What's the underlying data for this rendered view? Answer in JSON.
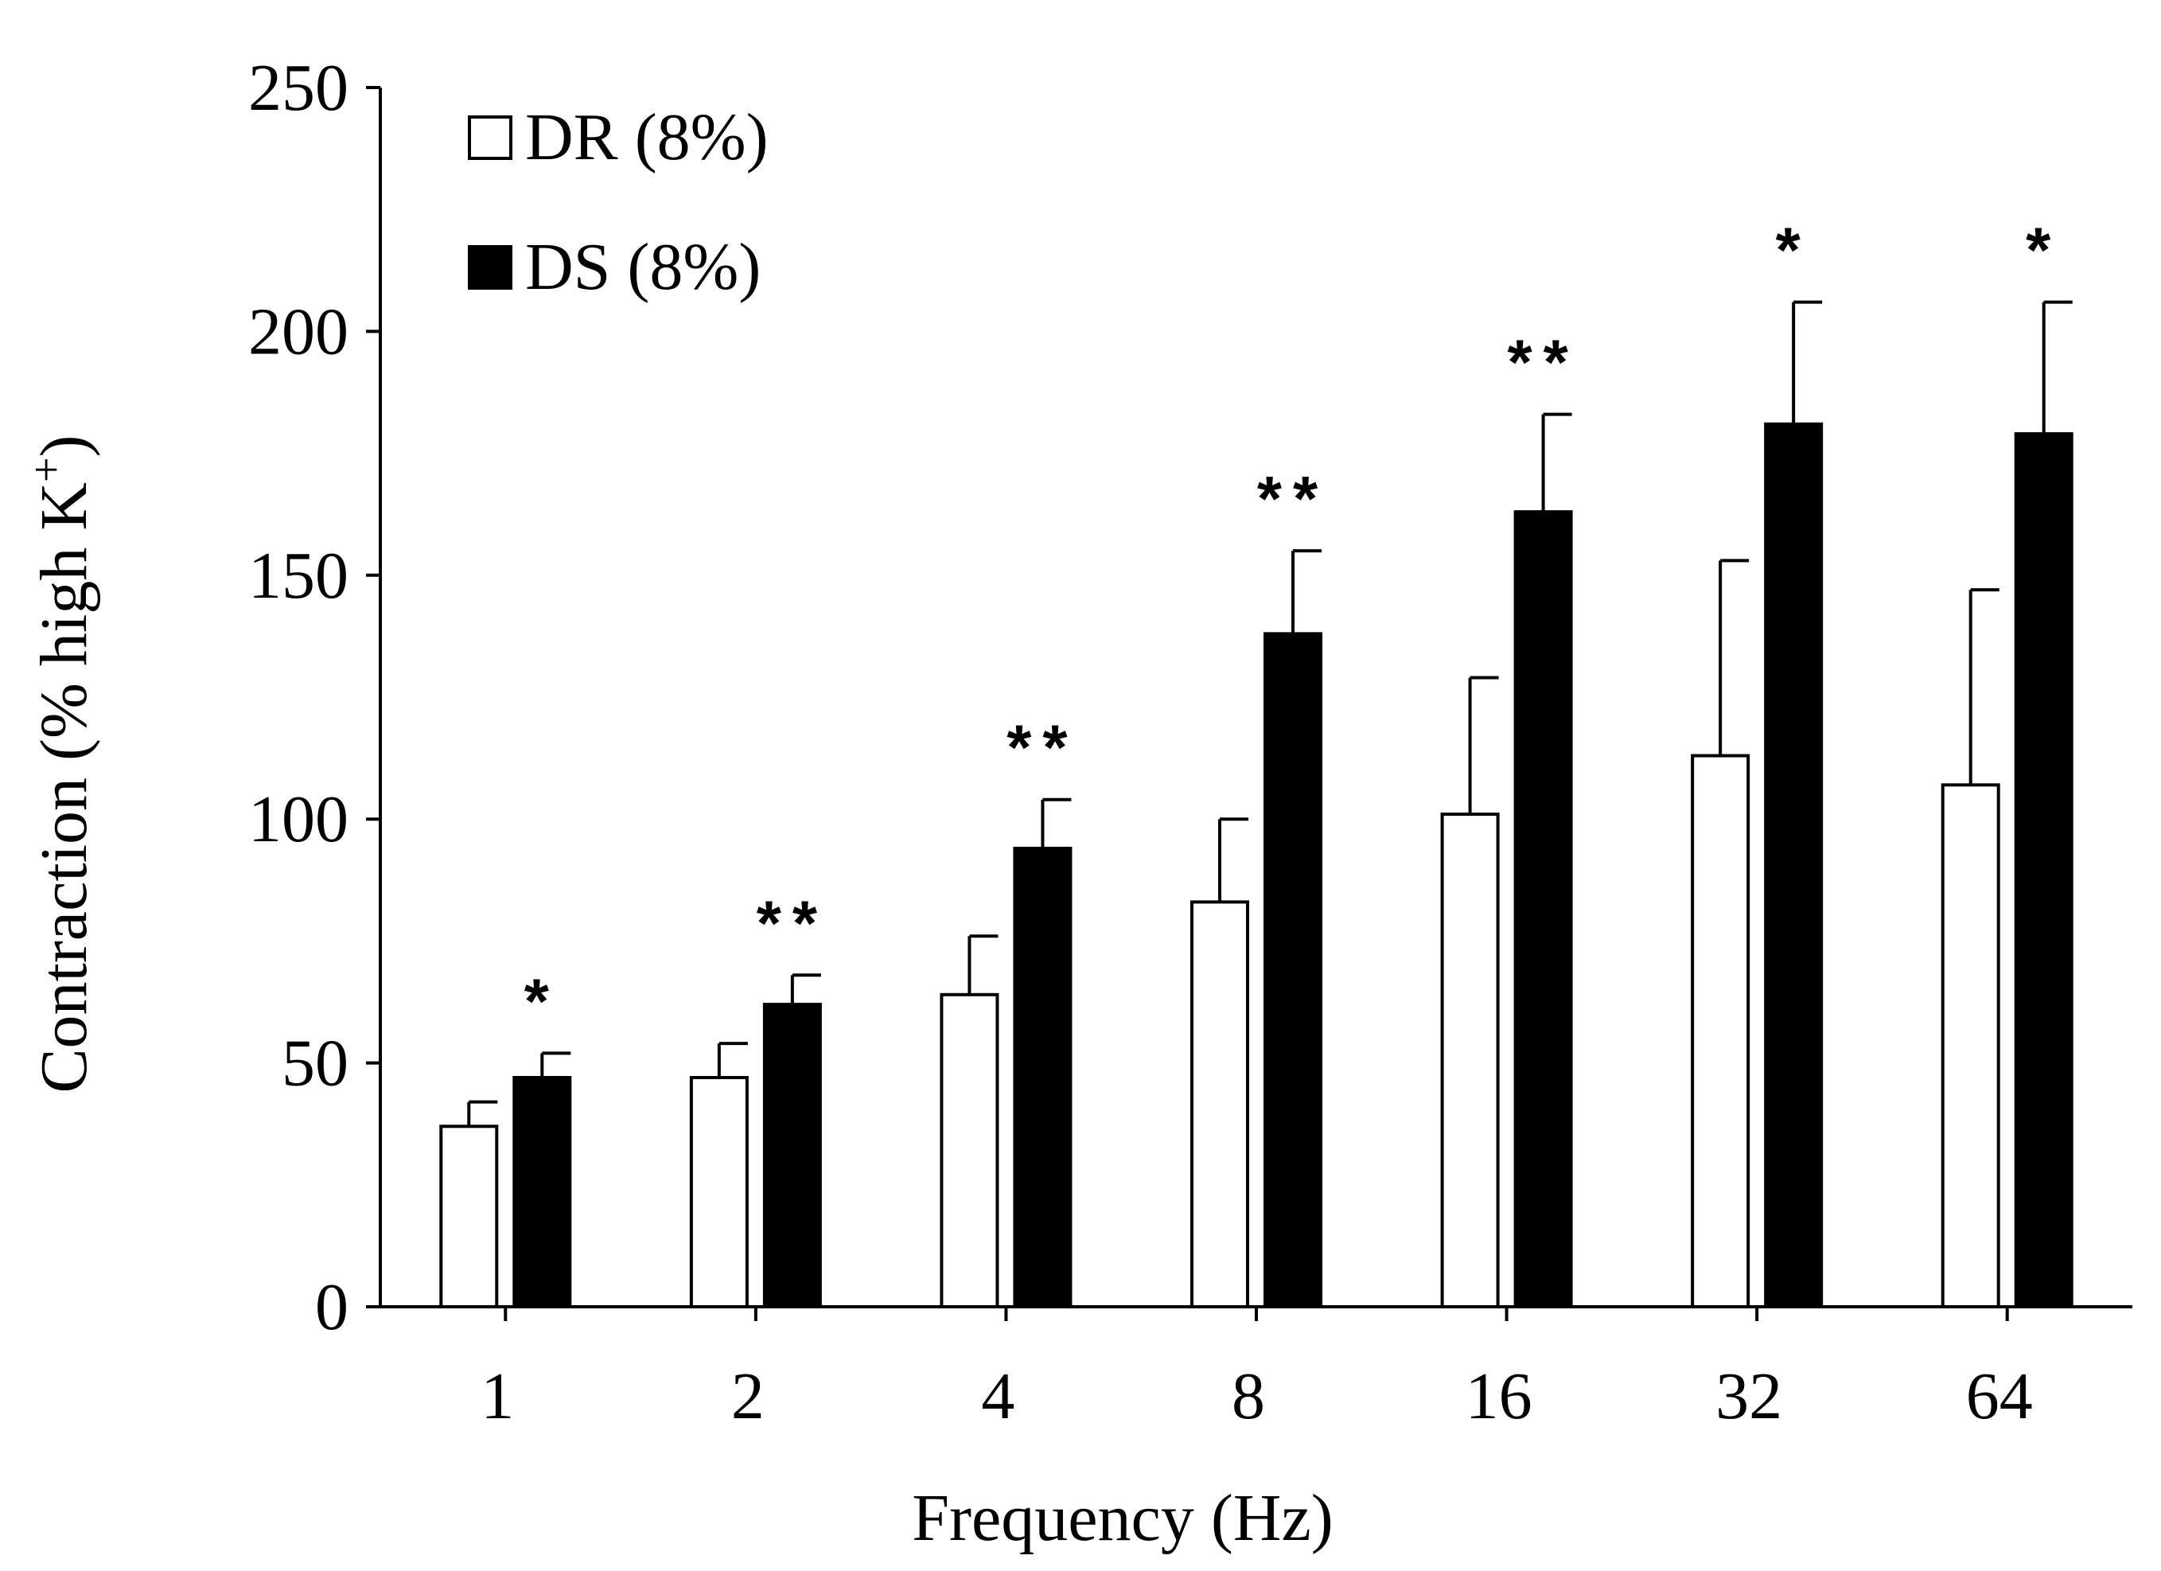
{
  "chart_data": {
    "type": "bar",
    "title": "",
    "xlabel": "Frequency (Hz)",
    "ylabel_main": "Contraction (% high K",
    "ylabel_sup": "+",
    "ylabel_close": ")",
    "categories": [
      "1",
      "2",
      "4",
      "8",
      "16",
      "32",
      "64"
    ],
    "ylim": [
      0,
      250
    ],
    "yticks": [
      "0",
      "50",
      "100",
      "150",
      "200",
      "250"
    ],
    "legend_position": "top-left",
    "series": [
      {
        "name": "DR (8%)",
        "fill": "#ffffff",
        "values": [
          37,
          47,
          64,
          83,
          101,
          113,
          107
        ],
        "errors": [
          5,
          7,
          12,
          17,
          28,
          40,
          40
        ]
      },
      {
        "name": "DS (8%)",
        "fill": "#000000",
        "values": [
          47,
          62,
          94,
          138,
          163,
          181,
          179
        ],
        "errors": [
          5,
          6,
          10,
          17,
          20,
          25,
          27
        ]
      }
    ],
    "significance": [
      "*",
      "**",
      "**",
      "**",
      "**",
      "*",
      "*"
    ]
  }
}
